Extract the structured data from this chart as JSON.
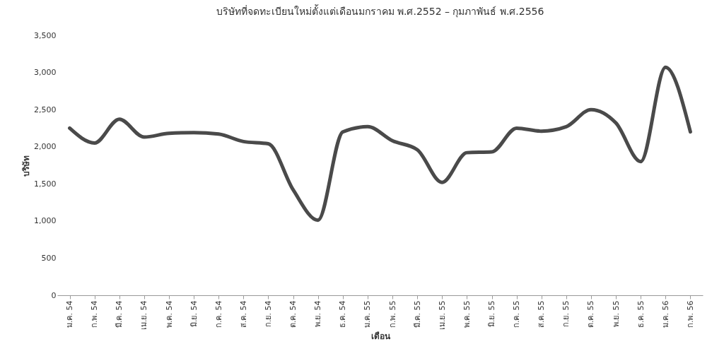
{
  "chart_data": {
    "type": "line",
    "title": "บริษัทที่จดทะเบียนใหม่ตั้งแต่เดือนมกราคม พ.ศ.2552 – กุมภาพันธ์ พ.ศ.2556",
    "xlabel": "เดือน",
    "ylabel": "บริษัท",
    "categories": [
      "ม.ค. 54",
      "ก.พ. 54",
      "มี.ค. 54",
      "เม.ย. 54",
      "พ.ค. 54",
      "มิ.ย. 54",
      "ก.ค. 54",
      "ส.ค. 54",
      "ก.ย. 54",
      "ต.ค. 54",
      "พ.ย. 54",
      "ธ.ค. 54",
      "ม.ค. 55",
      "ก.พ. 55",
      "มี.ค. 55",
      "เม.ย. 55",
      "พ.ค. 55",
      "มิ.ย. 55",
      "ก.ค. 55",
      "ส.ค. 55",
      "ก.ย. 55",
      "ต.ค. 55",
      "พ.ย. 55",
      "ธ.ค. 55",
      "ม.ค. 56",
      "ก.พ. 56"
    ],
    "series": [
      {
        "color": "#4a4a4a",
        "values": [
          2250,
          2050,
          2370,
          2130,
          2180,
          2190,
          2170,
          2070,
          2040,
          1420,
          1010,
          2200,
          2270,
          2080,
          1960,
          1520,
          1920,
          1930,
          2250,
          2210,
          2270,
          2500,
          2320,
          1800,
          3070,
          2200
        ]
      }
    ],
    "ylim": [
      0,
      3500
    ],
    "yticks": [
      {
        "value": 0,
        "label": "0"
      },
      {
        "value": 500,
        "label": "500"
      },
      {
        "value": 1000,
        "label": "1,000"
      },
      {
        "value": 1500,
        "label": "1,500"
      },
      {
        "value": 2000,
        "label": "2,000"
      },
      {
        "value": 2500,
        "label": "2,500"
      },
      {
        "value": 3000,
        "label": "3,000"
      },
      {
        "value": 3500,
        "label": "3,500"
      }
    ],
    "grid": false,
    "marker": "none",
    "line_style": "solid"
  }
}
